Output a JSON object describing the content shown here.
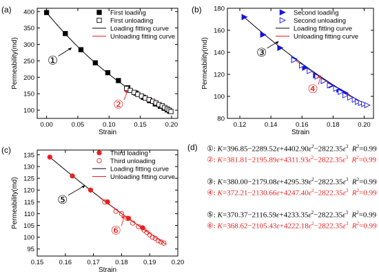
{
  "chart_data": [
    {
      "panel_label": "(a)",
      "type": "line",
      "xlabel": "Strain",
      "ylabel": "Permeability(md)",
      "xlim": [
        -0.015,
        0.21
      ],
      "ylim": [
        75,
        410
      ],
      "xticks": [
        "0.00",
        "0.05",
        "0.10",
        "0.15",
        "0.20"
      ],
      "xtick_values": [
        0,
        0.05,
        0.1,
        0.15,
        0.2
      ],
      "yticks": [
        "100",
        "150",
        "200",
        "250",
        "300",
        "350",
        "400"
      ],
      "ytick_values": [
        100,
        150,
        200,
        250,
        300,
        350,
        400
      ],
      "legend_position": "top-right",
      "annotations": [
        {
          "text": "①",
          "x": 0.04,
          "y": 290,
          "tx": 0.01,
          "ty": 252
        },
        {
          "text": "②",
          "x": 0.13,
          "y": 160,
          "tx": 0.115,
          "ty": 118
        }
      ],
      "series": [
        {
          "name": "First loading",
          "kind": "marker",
          "marker": "square-filled",
          "color": "#000000",
          "x": [
            0.0,
            0.03,
            0.055,
            0.078,
            0.098,
            0.115,
            0.13,
            0.143,
            0.155,
            0.165,
            0.174,
            0.182,
            0.188,
            0.193,
            0.197
          ],
          "y": [
            397,
            333,
            284,
            244,
            214,
            190,
            168,
            152,
            139,
            129,
            119,
            112,
            106,
            101,
            97
          ]
        },
        {
          "name": "First unloading",
          "kind": "marker",
          "marker": "square-open",
          "color": "#000000",
          "x": [
            0.128,
            0.134,
            0.14,
            0.146,
            0.152,
            0.158,
            0.164,
            0.17,
            0.175,
            0.18,
            0.185,
            0.189,
            0.193,
            0.196,
            0.199
          ],
          "y": [
            166,
            160,
            154,
            148,
            143,
            137,
            132,
            127,
            122,
            117,
            113,
            108,
            104,
            100,
            96
          ]
        },
        {
          "name": "Loading fitting curve",
          "kind": "curve",
          "color": "#000000",
          "coef": [
            396.85,
            -2289.52,
            4402.9,
            -2822.35
          ],
          "range": [
            0,
            0.197
          ]
        },
        {
          "name": "Unloading fitting curve",
          "kind": "curve",
          "color": "#e8201e",
          "coef": [
            381.81,
            -2195.89,
            4311.93,
            -2822.35
          ],
          "range": [
            0.125,
            0.2
          ]
        }
      ]
    },
    {
      "panel_label": "(b)",
      "type": "line",
      "xlabel": "Strain",
      "ylabel": "Permeability(md)",
      "xlim": [
        0.112,
        0.206
      ],
      "ylim": [
        80,
        180
      ],
      "xticks": [
        "0.12",
        "0.14",
        "0.16",
        "0.18",
        "0.20"
      ],
      "xtick_values": [
        0.12,
        0.14,
        0.16,
        0.18,
        0.2
      ],
      "yticks": [
        "80",
        "100",
        "120",
        "140",
        "160",
        "180"
      ],
      "ytick_values": [
        80,
        100,
        120,
        140,
        160,
        180
      ],
      "legend_position": "top-right",
      "annotations": [
        {
          "text": "③",
          "x": 0.145,
          "y": 150,
          "tx": 0.134,
          "ty": 140
        },
        {
          "text": "④",
          "x": 0.172,
          "y": 119,
          "tx": 0.167,
          "ty": 107
        }
      ],
      "series": [
        {
          "name": "Second loading",
          "kind": "marker",
          "marker": "triangle-filled",
          "color": "#1515e6",
          "x": [
            0.123,
            0.135,
            0.146,
            0.155,
            0.162,
            0.169,
            0.174,
            0.179,
            0.184,
            0.188
          ],
          "y": [
            172,
            156,
            144,
            134,
            126,
            119,
            114,
            110,
            106,
            103
          ]
        },
        {
          "name": "Second unloading",
          "kind": "marker",
          "marker": "triangle-open",
          "color": "#1515e6",
          "x": [
            0.155,
            0.16,
            0.165,
            0.17,
            0.174,
            0.178,
            0.182,
            0.185,
            0.188,
            0.191,
            0.194,
            0.196,
            0.198,
            0.2,
            0.202
          ],
          "y": [
            133,
            128,
            123,
            118,
            114,
            110,
            107,
            104,
            101,
            99,
            97,
            95,
            94,
            93,
            92
          ]
        },
        {
          "name": "Loading fitting curve",
          "kind": "curve",
          "color": "#000000",
          "coef": [
            380.0,
            -2179.08,
            4295.39,
            -2822.35
          ],
          "range": [
            0.123,
            0.2
          ]
        },
        {
          "name": "Unloading fitting curve",
          "kind": "curve",
          "color": "#e8201e",
          "coef": [
            372.21,
            -2130.66,
            4247.4,
            -2822.35
          ],
          "range": [
            0.155,
            0.202
          ]
        }
      ]
    },
    {
      "panel_label": "(c)",
      "type": "line",
      "xlabel": "Strain",
      "ylabel": "Permeability(md)",
      "xlim": [
        0.15,
        0.2
      ],
      "ylim": [
        92,
        137
      ],
      "xticks": [
        "0.15",
        "0.16",
        "0.17",
        "0.18",
        "0.19",
        "0.20"
      ],
      "xtick_values": [
        0.15,
        0.16,
        0.17,
        0.18,
        0.19,
        0.2
      ],
      "yticks": [
        "95",
        "100",
        "105",
        "110",
        "115",
        "120",
        "125",
        "130",
        "135"
      ],
      "ytick_values": [
        95,
        100,
        105,
        110,
        115,
        120,
        125,
        130,
        135
      ],
      "legend_position": "top-right",
      "annotations": [
        {
          "text": "⑤",
          "x": 0.167,
          "y": 122,
          "tx": 0.159,
          "ty": 116
        },
        {
          "text": "⑥",
          "x": 0.181,
          "y": 109,
          "tx": 0.178,
          "ty": 103
        }
      ],
      "series": [
        {
          "name": "Third loading",
          "kind": "marker",
          "marker": "circle-filled",
          "color": "#e8201e",
          "x": [
            0.1545,
            0.1625,
            0.169,
            0.175,
            0.1825,
            0.1875
          ],
          "y": [
            134,
            126,
            120,
            115,
            108,
            104
          ]
        },
        {
          "name": "Third unloading",
          "kind": "marker",
          "marker": "circle-open",
          "color": "#e8201e",
          "x": [
            0.174,
            0.178,
            0.18,
            0.182,
            0.184,
            0.186,
            0.188,
            0.189,
            0.19,
            0.191,
            0.192,
            0.193,
            0.194,
            0.195
          ],
          "y": [
            115,
            111,
            110,
            108,
            106,
            104.5,
            103,
            102,
            101,
            100,
            99.5,
            98.5,
            98,
            97.5
          ]
        },
        {
          "name": "Loading fitting curve",
          "kind": "curve",
          "color": "#000000",
          "coef": [
            370.37,
            -2116.59,
            4233.35,
            -2822.35
          ],
          "range": [
            0.154,
            0.19
          ]
        },
        {
          "name": "Unloading fitting curve",
          "kind": "curve",
          "color": "#e8201e",
          "coef": [
            368.62,
            -2105.43,
            4222.18,
            -2822.35
          ],
          "range": [
            0.172,
            0.196
          ]
        }
      ]
    },
    {
      "panel_label": "(d)",
      "type": "table",
      "rows": [
        {
          "mark": "①",
          "K": "396.85",
          "a": "2289.52",
          "b": "4402.90",
          "c": "2822.35",
          "R2": "0.99",
          "color": "#000000"
        },
        {
          "mark": "②",
          "K": "381.81",
          "a": "2195.89",
          "b": "4311.93",
          "c": "2822.35",
          "R2": "0.99",
          "color": "#e8201e"
        },
        {
          "mark": "③",
          "K": "380.00",
          "a": "2179.08",
          "b": "4295.39",
          "c": "2822.35",
          "R2": "0.99",
          "color": "#000000"
        },
        {
          "mark": "④",
          "K": "372.21",
          "a": "2130.66",
          "b": "4247.40",
          "c": "2822.35",
          "R2": "0.99",
          "color": "#e8201e"
        },
        {
          "mark": "⑤",
          "K": "370.37",
          "a": "2116.59",
          "b": "4233.35",
          "c": "2822.35",
          "R2": "0.99",
          "color": "#000000"
        },
        {
          "mark": "⑥",
          "K": "368.62",
          "a": "2105.43",
          "b": "4222.18",
          "c": "2822.35",
          "R2": "0.99",
          "color": "#e8201e"
        }
      ]
    }
  ]
}
